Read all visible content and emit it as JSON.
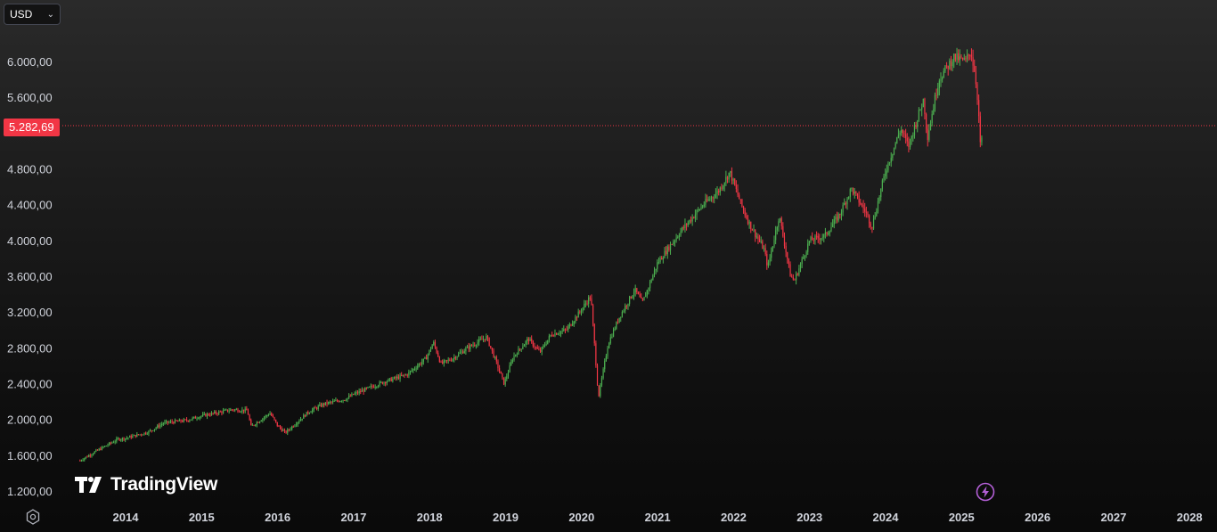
{
  "currency": {
    "selected": "USD"
  },
  "current_price": {
    "label": "5.282,69"
  },
  "brand": {
    "name": "TradingView"
  },
  "icons": {
    "settings": "settings-icon",
    "alert": "lightning-icon",
    "chevron": "chevron-down-icon"
  },
  "colors": {
    "up": "#26a69a",
    "down": "#f23645",
    "up_candle": "#4caf50",
    "price_line": "#f23645"
  },
  "chart_data": {
    "type": "candlestick",
    "title": "",
    "xlabel": "",
    "ylabel": "",
    "ylim": [
      1200,
      6400
    ],
    "xlim": [
      2013.4,
      2028.2
    ],
    "current_price": 5282.69,
    "y_ticks": [
      1200,
      1600,
      2000,
      2400,
      2800,
      3200,
      3600,
      4000,
      4400,
      4800,
      5600,
      6000
    ],
    "y_tick_labels": [
      "1.200,00",
      "1.600,00",
      "2.000,00",
      "2.400,00",
      "2.800,00",
      "3.200,00",
      "3.600,00",
      "4.000,00",
      "4.400,00",
      "4.800,00",
      "5.600,00",
      "6.000,00"
    ],
    "x_ticks": [
      2014,
      2015,
      2016,
      2017,
      2018,
      2019,
      2020,
      2021,
      2022,
      2023,
      2024,
      2025,
      2026,
      2027,
      2028
    ],
    "x_tick_labels": [
      "2014",
      "2015",
      "2016",
      "2017",
      "2018",
      "2019",
      "2020",
      "2021",
      "2022",
      "2023",
      "2024",
      "2025",
      "2026",
      "2027",
      "2028"
    ],
    "series": [
      {
        "values": [
          [
            2013.4,
            1540
          ],
          [
            2013.6,
            1640
          ],
          [
            2013.9,
            1780
          ],
          [
            2014.0,
            1790
          ],
          [
            2014.3,
            1860
          ],
          [
            2014.5,
            1960
          ],
          [
            2014.8,
            1990
          ],
          [
            2015.0,
            2040
          ],
          [
            2015.4,
            2110
          ],
          [
            2015.6,
            2100
          ],
          [
            2015.65,
            1920
          ],
          [
            2015.9,
            2070
          ],
          [
            2016.0,
            1930
          ],
          [
            2016.1,
            1850
          ],
          [
            2016.4,
            2080
          ],
          [
            2016.6,
            2170
          ],
          [
            2016.9,
            2230
          ],
          [
            2017.0,
            2280
          ],
          [
            2017.4,
            2420
          ],
          [
            2017.7,
            2500
          ],
          [
            2017.95,
            2680
          ],
          [
            2018.05,
            2860
          ],
          [
            2018.15,
            2620
          ],
          [
            2018.3,
            2680
          ],
          [
            2018.5,
            2800
          ],
          [
            2018.75,
            2920
          ],
          [
            2018.85,
            2700
          ],
          [
            2018.98,
            2400
          ],
          [
            2019.1,
            2700
          ],
          [
            2019.3,
            2900
          ],
          [
            2019.45,
            2750
          ],
          [
            2019.6,
            2950
          ],
          [
            2019.8,
            3000
          ],
          [
            2020.0,
            3230
          ],
          [
            2020.12,
            3380
          ],
          [
            2020.2,
            2500
          ],
          [
            2020.22,
            2240
          ],
          [
            2020.35,
            2850
          ],
          [
            2020.5,
            3150
          ],
          [
            2020.7,
            3450
          ],
          [
            2020.8,
            3300
          ],
          [
            2021.0,
            3750
          ],
          [
            2021.3,
            4100
          ],
          [
            2021.6,
            4400
          ],
          [
            2021.8,
            4550
          ],
          [
            2021.95,
            4766
          ],
          [
            2022.1,
            4400
          ],
          [
            2022.2,
            4200
          ],
          [
            2022.4,
            3900
          ],
          [
            2022.45,
            3700
          ],
          [
            2022.6,
            4280
          ],
          [
            2022.75,
            3600
          ],
          [
            2022.8,
            3550
          ],
          [
            2023.0,
            4000
          ],
          [
            2023.2,
            4050
          ],
          [
            2023.4,
            4300
          ],
          [
            2023.55,
            4580
          ],
          [
            2023.75,
            4300
          ],
          [
            2023.82,
            4150
          ],
          [
            2024.0,
            4780
          ],
          [
            2024.2,
            5250
          ],
          [
            2024.3,
            5050
          ],
          [
            2024.5,
            5580
          ],
          [
            2024.55,
            5150
          ],
          [
            2024.7,
            5800
          ],
          [
            2024.9,
            6050
          ],
          [
            2025.05,
            6000
          ],
          [
            2025.12,
            6120
          ],
          [
            2025.18,
            5850
          ],
          [
            2025.22,
            5500
          ],
          [
            2025.25,
            5000
          ],
          [
            2025.28,
            5282.69
          ]
        ]
      }
    ]
  }
}
